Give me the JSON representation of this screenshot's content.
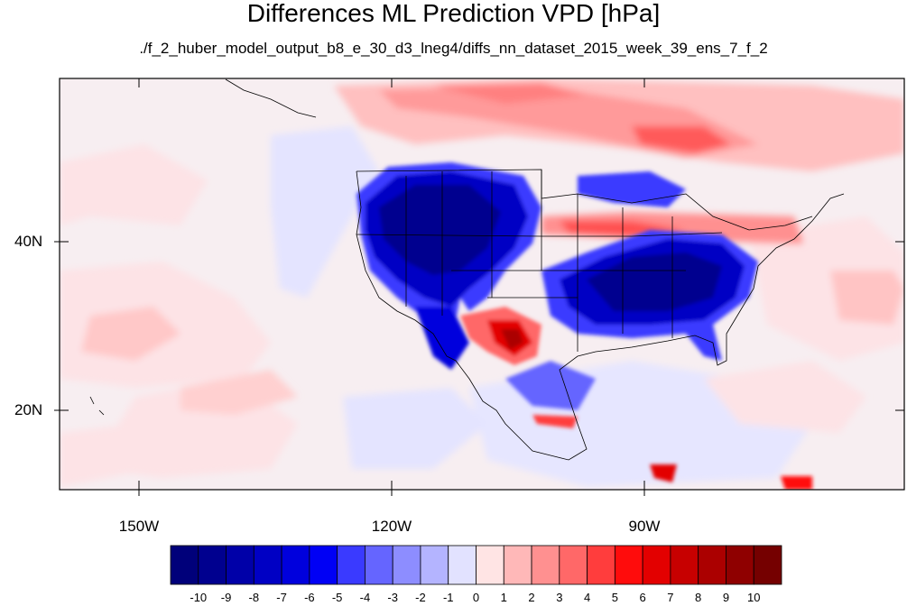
{
  "title": "Differences ML Prediction VPD [hPa]",
  "subtitle": "./f_2_huber_model_output_b8_e_30_d3_lneg4/diffs_nn_dataset_2015_week_39_ens_7_f_2",
  "map": {
    "lat_labels": [
      "40N",
      "20N"
    ],
    "lon_labels": [
      "150W",
      "120W",
      "90W"
    ],
    "lon_range": [
      -161,
      -63
    ],
    "lat_range": [
      11,
      59
    ]
  },
  "colorbar": {
    "labels": [
      "-10",
      "-9",
      "-8",
      "-7",
      "-6",
      "-5",
      "-4",
      "-3",
      "-2",
      "-1",
      "0",
      "1",
      "2",
      "3",
      "4",
      "5",
      "6",
      "7",
      "8",
      "9",
      "10"
    ],
    "colors": [
      "#00007a",
      "#00008f",
      "#0000a8",
      "#0000c4",
      "#0000dd",
      "#0000f5",
      "#3a3aff",
      "#6565ff",
      "#8d8dff",
      "#b4b4ff",
      "#e2e2ff",
      "#ffe4e4",
      "#ffb8b8",
      "#ff9090",
      "#ff6868",
      "#ff3d3d",
      "#ff0c0c",
      "#e30000",
      "#c70000",
      "#ab0000",
      "#8f0000",
      "#750000"
    ]
  },
  "colors": {
    "background_neutral": "#f6eff2",
    "strong_negative": "#0000c4",
    "strong_positive": "#e30000"
  }
}
